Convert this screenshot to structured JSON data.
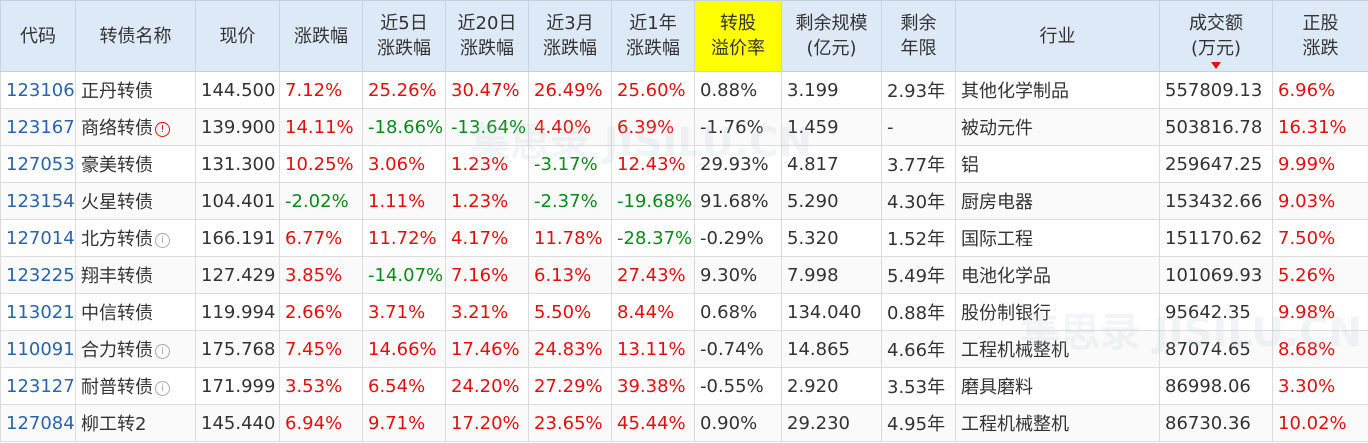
{
  "headers": {
    "code": "代码",
    "name": "转债名称",
    "price": "现价",
    "change": "涨跌幅",
    "change_5d": [
      "近5日",
      "涨跌幅"
    ],
    "change_20d": [
      "近20日",
      "涨跌幅"
    ],
    "change_3m": [
      "近3月",
      "涨跌幅"
    ],
    "change_1y": [
      "近1年",
      "涨跌幅"
    ],
    "premium": [
      "转股",
      "溢价率"
    ],
    "remaining_size": [
      "剩余规模",
      "(亿元)"
    ],
    "remaining_years": [
      "剩余",
      "年限"
    ],
    "industry": "行业",
    "volume": [
      "成交额",
      "(万元)"
    ],
    "stock_change": [
      "正股",
      "涨跌"
    ]
  },
  "rows": [
    {
      "code": "123106",
      "name": "正丹转债",
      "icon": "",
      "price": "144.500",
      "change": "7.12%",
      "d5": "25.26%",
      "d20": "30.47%",
      "m3": "26.49%",
      "y1": "25.60%",
      "premium": "0.88%",
      "size": "3.199",
      "years": "2.93年",
      "industry": "其他化学制品",
      "volume": "557809.13",
      "stock": "6.96%"
    },
    {
      "code": "123167",
      "name": "商络转债",
      "icon": "alert",
      "price": "139.900",
      "change": "14.11%",
      "d5": "-18.66%",
      "d20": "-13.64%",
      "m3": "4.40%",
      "y1": "6.39%",
      "premium": "-1.76%",
      "size": "1.459",
      "years": "-",
      "industry": "被动元件",
      "volume": "503816.78",
      "stock": "16.31%"
    },
    {
      "code": "127053",
      "name": "豪美转债",
      "icon": "",
      "price": "131.300",
      "change": "10.25%",
      "d5": "3.06%",
      "d20": "1.23%",
      "m3": "-3.17%",
      "y1": "12.43%",
      "premium": "29.93%",
      "size": "4.817",
      "years": "3.77年",
      "industry": "铝",
      "volume": "259647.25",
      "stock": "9.99%"
    },
    {
      "code": "123154",
      "name": "火星转债",
      "icon": "",
      "price": "104.401",
      "change": "-2.02%",
      "d5": "1.11%",
      "d20": "1.23%",
      "m3": "-2.37%",
      "y1": "-19.68%",
      "premium": "91.68%",
      "size": "5.290",
      "years": "4.30年",
      "industry": "厨房电器",
      "volume": "153432.66",
      "stock": "9.03%"
    },
    {
      "code": "127014",
      "name": "北方转债",
      "icon": "info",
      "price": "166.191",
      "change": "6.77%",
      "d5": "11.72%",
      "d20": "4.17%",
      "m3": "11.78%",
      "y1": "-28.37%",
      "premium": "-0.29%",
      "size": "5.320",
      "years": "1.52年",
      "industry": "国际工程",
      "volume": "151170.62",
      "stock": "7.50%"
    },
    {
      "code": "123225",
      "name": "翔丰转债",
      "icon": "",
      "price": "127.429",
      "change": "3.85%",
      "d5": "-14.07%",
      "d20": "7.16%",
      "m3": "6.13%",
      "y1": "27.43%",
      "premium": "9.30%",
      "size": "7.998",
      "years": "5.49年",
      "industry": "电池化学品",
      "volume": "101069.93",
      "stock": "5.26%"
    },
    {
      "code": "113021",
      "name": "中信转债",
      "icon": "",
      "price": "119.994",
      "change": "2.66%",
      "d5": "3.71%",
      "d20": "3.21%",
      "m3": "5.50%",
      "y1": "8.44%",
      "premium": "0.68%",
      "size": "134.040",
      "years": "0.88年",
      "industry": "股份制银行",
      "volume": "95642.35",
      "stock": "9.98%"
    },
    {
      "code": "110091",
      "name": "合力转债",
      "icon": "info",
      "price": "175.768",
      "change": "7.45%",
      "d5": "14.66%",
      "d20": "17.46%",
      "m3": "24.83%",
      "y1": "13.11%",
      "premium": "-0.74%",
      "size": "14.865",
      "years": "4.66年",
      "industry": "工程机械整机",
      "volume": "87074.65",
      "stock": "8.68%"
    },
    {
      "code": "123127",
      "name": "耐普转债",
      "icon": "info",
      "price": "171.999",
      "change": "3.53%",
      "d5": "6.54%",
      "d20": "24.20%",
      "m3": "27.29%",
      "y1": "39.38%",
      "premium": "-0.55%",
      "size": "2.920",
      "years": "3.53年",
      "industry": "磨具磨料",
      "volume": "86998.06",
      "stock": "3.30%"
    },
    {
      "code": "127084",
      "name": "柳工转2",
      "icon": "",
      "price": "145.440",
      "change": "6.94%",
      "d5": "9.71%",
      "d20": "17.20%",
      "m3": "23.65%",
      "y1": "45.44%",
      "premium": "0.90%",
      "size": "29.230",
      "years": "4.95年",
      "industry": "工程机械整机",
      "volume": "86730.36",
      "stock": "10.02%"
    }
  ],
  "colors": {
    "up": "#e01010",
    "down": "#0a8a1a",
    "code": "#2a64a9",
    "header_bg": "#dde9f7",
    "highlight": "#ffff00"
  },
  "watermark": "集思录 JISILU.CN",
  "sort_icon": "sort-down-icon"
}
